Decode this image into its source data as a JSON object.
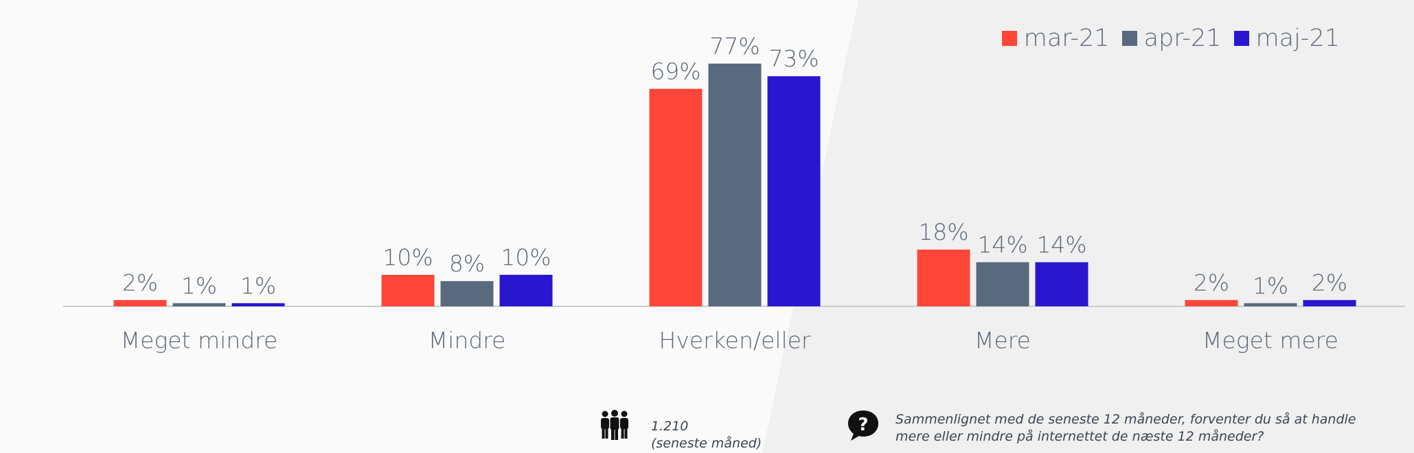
{
  "chart_data": {
    "type": "bar",
    "categories": [
      "Meget mindre",
      "Mindre",
      "Hverken/eller",
      "Mere",
      "Meget mere"
    ],
    "series": [
      {
        "name": "mar-21",
        "color": "#ff4638",
        "values": [
          2,
          10,
          69,
          18,
          2
        ]
      },
      {
        "name": "apr-21",
        "color": "#596a7e",
        "values": [
          1,
          8,
          77,
          14,
          1
        ]
      },
      {
        "name": "maj-21",
        "color": "#2b16cf",
        "values": [
          1,
          10,
          73,
          14,
          2
        ]
      }
    ],
    "value_labels": [
      [
        "2%",
        "10%",
        "69%",
        "18%",
        "2%"
      ],
      [
        "1%",
        "8%",
        "77%",
        "14%",
        "1%"
      ],
      [
        "1%",
        "10%",
        "73%",
        "14%",
        "2%"
      ]
    ],
    "ylim": [
      0,
      80
    ],
    "legend_position": "top-right",
    "grid": false
  },
  "footer": {
    "sample_size": "1.210",
    "sample_note": "(seneste måned)",
    "people_icon": "people-group-icon",
    "question_icon": "question-bubble-icon",
    "question": "Sammenlignet med de seneste 12 måneder, forventer du så at handle mere eller mindre på internettet de næste 12 måneder?"
  }
}
